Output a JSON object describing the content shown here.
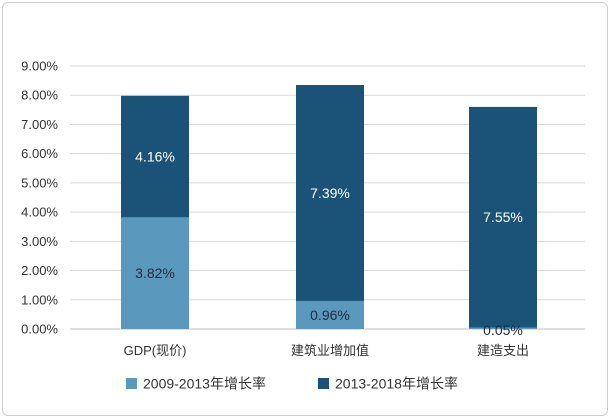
{
  "chart_data": {
    "type": "bar",
    "stacked": true,
    "title": "",
    "xlabel": "",
    "ylabel": "",
    "categories": [
      "GDP(现价)",
      "建筑业增加值",
      "建造支出"
    ],
    "series": [
      {
        "name": "2009-2013年增长率",
        "values": [
          3.82,
          0.96,
          0.05
        ],
        "labels": [
          "3.82%",
          "0.96%",
          "0.05%"
        ],
        "color": "#5b98be",
        "label_color": "#1f2d3a"
      },
      {
        "name": "2013-2018年增长率",
        "values": [
          4.16,
          7.39,
          7.55
        ],
        "labels": [
          "4.16%",
          "7.39%",
          "7.55%"
        ],
        "color": "#1a5377",
        "label_color": "#ffffff"
      }
    ],
    "ylim": [
      0,
      9
    ],
    "y_ticks": [
      0,
      1,
      2,
      3,
      4,
      5,
      6,
      7,
      8,
      9
    ],
    "y_tick_labels": [
      "0.00%",
      "1.00%",
      "2.00%",
      "3.00%",
      "4.00%",
      "5.00%",
      "6.00%",
      "7.00%",
      "8.00%",
      "9.00%"
    ],
    "grid": true,
    "legend_position": "bottom-center"
  }
}
